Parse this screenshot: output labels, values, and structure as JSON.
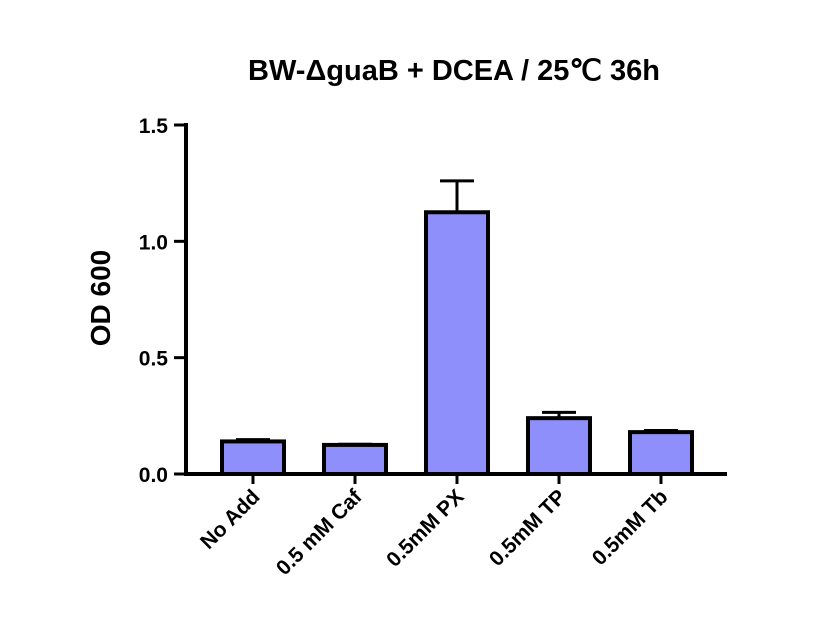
{
  "chart_data": {
    "type": "bar",
    "title": "BW-ΔguaB + DCEA / 25℃ 36h",
    "xlabel": "",
    "ylabel": "OD 600",
    "ylim": [
      0,
      1.5
    ],
    "yticks": [
      0.0,
      0.5,
      1.0,
      1.5
    ],
    "ytick_labels": [
      "0.0",
      "0.5",
      "1.0",
      "1.5"
    ],
    "categories": [
      "No Add",
      "0.5 mM Caf",
      "0.5mM PX",
      "0.5mM TP",
      "0.5mM Tb"
    ],
    "values": [
      0.14,
      0.125,
      1.125,
      0.24,
      0.18
    ],
    "errors": [
      0.008,
      0.003,
      0.135,
      0.025,
      0.007
    ],
    "bar_color": "#8f8ffb",
    "edge_color": "#000000",
    "grid": false,
    "legend": "none"
  }
}
